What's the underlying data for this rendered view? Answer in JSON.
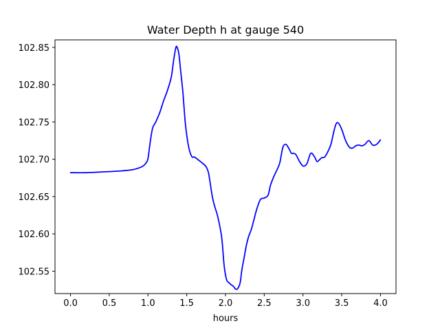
{
  "chart_data": {
    "type": "line",
    "title": "Water Depth h at gauge 540",
    "xlabel": "hours",
    "ylabel": "",
    "xlim": [
      -0.2,
      4.2
    ],
    "ylim": [
      102.52,
      102.86
    ],
    "xticks": [
      0.0,
      0.5,
      1.0,
      1.5,
      2.0,
      2.5,
      3.0,
      3.5,
      4.0
    ],
    "xtick_labels": [
      "0.0",
      "0.5",
      "1.0",
      "1.5",
      "2.0",
      "2.5",
      "3.0",
      "3.5",
      "4.0"
    ],
    "yticks": [
      102.55,
      102.6,
      102.65,
      102.7,
      102.75,
      102.8,
      102.85
    ],
    "ytick_labels": [
      "102.55",
      "102.60",
      "102.65",
      "102.70",
      "102.75",
      "102.80",
      "102.85"
    ],
    "grid": false,
    "series": [
      {
        "color": "#0000ff",
        "x": [
          0.0,
          0.2,
          0.4,
          0.6,
          0.8,
          0.9,
          0.95,
          0.98,
          1.0,
          1.03,
          1.06,
          1.1,
          1.15,
          1.2,
          1.25,
          1.3,
          1.33,
          1.36,
          1.38,
          1.4,
          1.42,
          1.45,
          1.48,
          1.51,
          1.54,
          1.57,
          1.6,
          1.65,
          1.7,
          1.75,
          1.78,
          1.8,
          1.83,
          1.86,
          1.9,
          1.95,
          1.98,
          2.0,
          2.02,
          2.04,
          2.07,
          2.1,
          2.13,
          2.16,
          2.19,
          2.21,
          2.24,
          2.27,
          2.3,
          2.33,
          2.36,
          2.4,
          2.45,
          2.5,
          2.55,
          2.58,
          2.62,
          2.66,
          2.7,
          2.74,
          2.78,
          2.82,
          2.85,
          2.88,
          2.91,
          2.95,
          3.0,
          3.05,
          3.1,
          3.15,
          3.18,
          3.21,
          3.24,
          3.28,
          3.32,
          3.36,
          3.4,
          3.43,
          3.46,
          3.5,
          3.55,
          3.6,
          3.64,
          3.68,
          3.72,
          3.76,
          3.8,
          3.85,
          3.9,
          3.95,
          4.0
        ],
        "y": [
          102.682,
          102.682,
          102.683,
          102.684,
          102.686,
          102.689,
          102.692,
          102.696,
          102.701,
          102.724,
          102.742,
          102.75,
          102.762,
          102.778,
          102.792,
          102.81,
          102.832,
          102.85,
          102.849,
          102.84,
          102.82,
          102.79,
          102.75,
          102.725,
          102.71,
          102.703,
          102.703,
          102.699,
          102.695,
          102.69,
          102.682,
          102.67,
          102.65,
          102.637,
          102.623,
          102.596,
          102.56,
          102.545,
          102.537,
          102.535,
          102.532,
          102.53,
          102.526,
          102.527,
          102.535,
          102.551,
          102.568,
          102.585,
          102.597,
          102.605,
          102.616,
          102.632,
          102.646,
          102.648,
          102.652,
          102.665,
          102.676,
          102.685,
          102.695,
          102.716,
          102.72,
          102.714,
          102.708,
          102.708,
          102.706,
          102.698,
          102.691,
          102.694,
          102.708,
          102.703,
          102.697,
          102.699,
          102.702,
          102.703,
          102.71,
          102.72,
          102.738,
          102.748,
          102.748,
          102.74,
          102.725,
          102.716,
          102.715,
          102.718,
          102.719,
          102.718,
          102.72,
          102.725,
          102.719,
          102.72,
          102.726
        ]
      }
    ]
  }
}
